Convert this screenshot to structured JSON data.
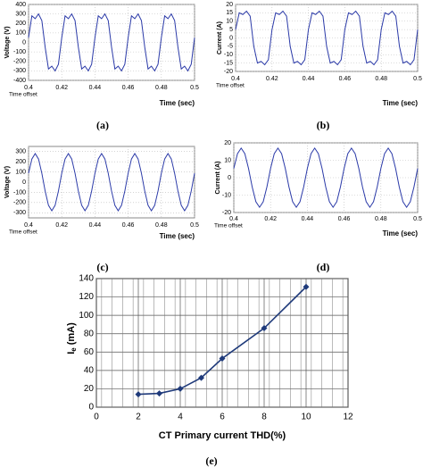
{
  "chart_data": [
    {
      "type": "line",
      "ylabel": "Voltage (V)",
      "xlabel": "Time (sec)",
      "annotation": "Time offset",
      "caption": "(a)",
      "color": "#2b3aa8",
      "grid": true,
      "xlim": [
        0.4,
        0.5
      ],
      "xticks": [
        0.4,
        0.42,
        0.44,
        0.46,
        0.48,
        0.5
      ],
      "ylim": [
        -400,
        400
      ],
      "yticks": [
        400,
        300,
        200,
        100,
        0,
        -100,
        -200,
        -300,
        -400
      ],
      "x": [
        0.4,
        0.402,
        0.404,
        0.406,
        0.408,
        0.41,
        0.412,
        0.414,
        0.416,
        0.418,
        0.42,
        0.422,
        0.424,
        0.426,
        0.428,
        0.43,
        0.432,
        0.434,
        0.436,
        0.438,
        0.44,
        0.442,
        0.444,
        0.446,
        0.448,
        0.45,
        0.452,
        0.454,
        0.456,
        0.458,
        0.46,
        0.462,
        0.464,
        0.466,
        0.468,
        0.47,
        0.472,
        0.474,
        0.476,
        0.478,
        0.48,
        0.482,
        0.484,
        0.486,
        0.488,
        0.49,
        0.492,
        0.494,
        0.496,
        0.498,
        0.5
      ],
      "values": [
        50,
        280,
        250,
        300,
        230,
        -50,
        -280,
        -250,
        -300,
        -230,
        50,
        280,
        250,
        300,
        230,
        -50,
        -280,
        -250,
        -300,
        -230,
        50,
        280,
        250,
        300,
        230,
        -50,
        -280,
        -250,
        -300,
        -230,
        50,
        280,
        250,
        300,
        230,
        -50,
        -280,
        -250,
        -300,
        -230,
        50,
        280,
        250,
        300,
        230,
        -50,
        -280,
        -250,
        -300,
        -230,
        50
      ]
    },
    {
      "type": "line",
      "ylabel": "Current (A)",
      "xlabel": "Time (sec)",
      "annotation": "Time offset",
      "caption": "(b)",
      "color": "#2b3aa8",
      "grid": true,
      "xlim": [
        0.4,
        0.5
      ],
      "xticks": [
        0.4,
        0.42,
        0.44,
        0.46,
        0.48,
        0.5
      ],
      "ylim": [
        -20,
        20
      ],
      "yticks": [
        20,
        15,
        10,
        5,
        0,
        -5,
        -10,
        -15,
        -20
      ],
      "x": [
        0.4,
        0.402,
        0.404,
        0.406,
        0.408,
        0.41,
        0.412,
        0.414,
        0.416,
        0.418,
        0.42,
        0.422,
        0.424,
        0.426,
        0.428,
        0.43,
        0.432,
        0.434,
        0.436,
        0.438,
        0.44,
        0.442,
        0.444,
        0.446,
        0.448,
        0.45,
        0.452,
        0.454,
        0.456,
        0.458,
        0.46,
        0.462,
        0.464,
        0.466,
        0.468,
        0.47,
        0.472,
        0.474,
        0.476,
        0.478,
        0.48,
        0.482,
        0.484,
        0.486,
        0.488,
        0.49,
        0.492,
        0.494,
        0.496,
        0.498,
        0.5
      ],
      "values": [
        5,
        15,
        14,
        16,
        13,
        -5,
        -15,
        -14,
        -16,
        -13,
        5,
        15,
        14,
        16,
        13,
        -5,
        -15,
        -14,
        -16,
        -13,
        5,
        15,
        14,
        16,
        13,
        -5,
        -15,
        -14,
        -16,
        -13,
        5,
        15,
        14,
        16,
        13,
        -5,
        -15,
        -14,
        -16,
        -13,
        5,
        15,
        14,
        16,
        13,
        -5,
        -15,
        -14,
        -16,
        -13,
        5
      ]
    },
    {
      "type": "line",
      "ylabel": "Voltage (V)",
      "xlabel": "Time (sec)",
      "annotation": "Time offset",
      "caption": "(c)",
      "color": "#2b3aa8",
      "grid": true,
      "xlim": [
        0.4,
        0.5
      ],
      "xticks": [
        0.4,
        0.42,
        0.44,
        0.46,
        0.48,
        0.5
      ],
      "ylim": [
        -350,
        350
      ],
      "yticks": [
        300,
        200,
        100,
        0,
        -100,
        -200,
        -300
      ],
      "x": [
        0.4,
        0.402,
        0.404,
        0.406,
        0.408,
        0.41,
        0.412,
        0.414,
        0.416,
        0.418,
        0.42,
        0.422,
        0.424,
        0.426,
        0.428,
        0.43,
        0.432,
        0.434,
        0.436,
        0.438,
        0.44,
        0.442,
        0.444,
        0.446,
        0.448,
        0.45,
        0.452,
        0.454,
        0.456,
        0.458,
        0.46,
        0.462,
        0.464,
        0.466,
        0.468,
        0.47,
        0.472,
        0.474,
        0.476,
        0.478,
        0.48,
        0.482,
        0.484,
        0.486,
        0.488,
        0.49,
        0.492,
        0.494,
        0.496,
        0.498,
        0.5
      ],
      "values": [
        87,
        227,
        280,
        227,
        87,
        -87,
        -227,
        -280,
        -227,
        -87,
        87,
        227,
        280,
        227,
        87,
        -87,
        -227,
        -280,
        -227,
        -87,
        87,
        227,
        280,
        227,
        87,
        -87,
        -227,
        -280,
        -227,
        -87,
        87,
        227,
        280,
        227,
        87,
        -87,
        -227,
        -280,
        -227,
        -87,
        87,
        227,
        280,
        227,
        87,
        -87,
        -227,
        -280,
        -227,
        -87,
        87
      ]
    },
    {
      "type": "line",
      "ylabel": "Current (A)",
      "xlabel": "Time (sec)",
      "annotation": "Time offset",
      "caption": "(d)",
      "color": "#2b3aa8",
      "grid": true,
      "xlim": [
        0.4,
        0.5
      ],
      "xticks": [
        0.4,
        0.42,
        0.44,
        0.46,
        0.48,
        0.5
      ],
      "ylim": [
        -20,
        20
      ],
      "yticks": [
        20,
        10,
        0,
        -10,
        -20
      ],
      "x": [
        0.4,
        0.402,
        0.404,
        0.406,
        0.408,
        0.41,
        0.412,
        0.414,
        0.416,
        0.418,
        0.42,
        0.422,
        0.424,
        0.426,
        0.428,
        0.43,
        0.432,
        0.434,
        0.436,
        0.438,
        0.44,
        0.442,
        0.444,
        0.446,
        0.448,
        0.45,
        0.452,
        0.454,
        0.456,
        0.458,
        0.46,
        0.462,
        0.464,
        0.466,
        0.468,
        0.47,
        0.472,
        0.474,
        0.476,
        0.478,
        0.48,
        0.482,
        0.484,
        0.486,
        0.488,
        0.49,
        0.492,
        0.494,
        0.496,
        0.498,
        0.5
      ],
      "values": [
        5.3,
        13.8,
        17,
        13.8,
        5.3,
        -5.3,
        -13.8,
        -17,
        -13.8,
        -5.3,
        5.3,
        13.8,
        17,
        13.8,
        5.3,
        -5.3,
        -13.8,
        -17,
        -13.8,
        -5.3,
        5.3,
        13.8,
        17,
        13.8,
        5.3,
        -5.3,
        -13.8,
        -17,
        -13.8,
        -5.3,
        5.3,
        13.8,
        17,
        13.8,
        5.3,
        -5.3,
        -13.8,
        -17,
        -13.8,
        -5.3,
        5.3,
        13.8,
        17,
        13.8,
        5.3,
        -5.3,
        -13.8,
        -17,
        -13.8,
        -5.3,
        5.3
      ]
    },
    {
      "type": "line",
      "ylabel": {
        "main": "I",
        "sub": "e",
        "rest": "(mA)"
      },
      "xlabel": "CT Primary current THD(%)",
      "caption": "(e)",
      "color": "#1f3a7a",
      "grid": true,
      "markers": true,
      "xlim": [
        0,
        12
      ],
      "xticks": [
        0,
        2,
        4,
        6,
        8,
        10,
        12
      ],
      "ylim": [
        0,
        140
      ],
      "yticks": [
        0,
        20,
        40,
        60,
        80,
        100,
        120,
        140
      ],
      "x": [
        2,
        3,
        4,
        5,
        6,
        8,
        10
      ],
      "values": [
        14,
        15,
        20,
        32,
        53,
        86,
        131
      ]
    }
  ]
}
